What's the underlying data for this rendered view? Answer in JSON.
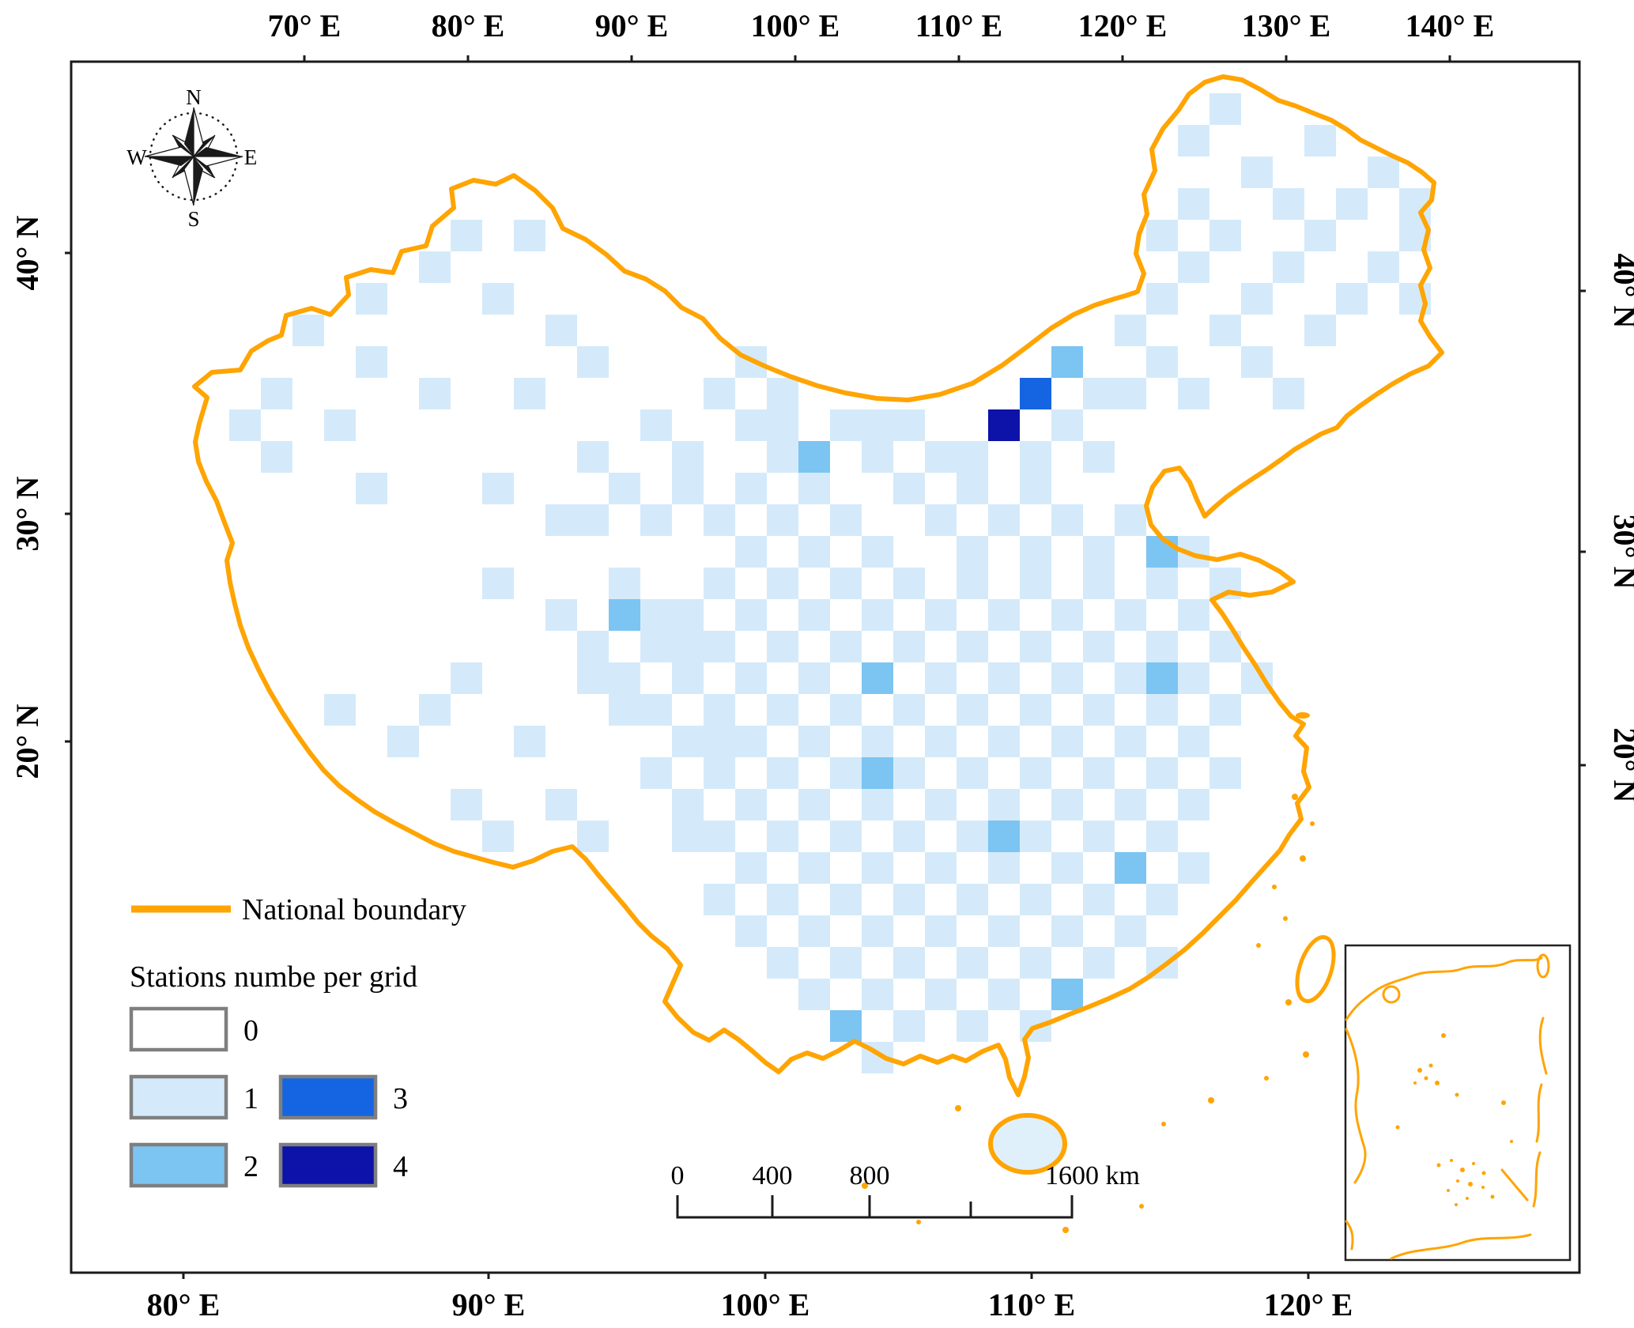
{
  "map": {
    "axes": {
      "top": [
        "70° E",
        "80° E",
        "90° E",
        "100° E",
        "110° E",
        "120° E",
        "130° E",
        "140° E"
      ],
      "bottom": [
        "80° E",
        "90° E",
        "100° E",
        "110° E",
        "120° E"
      ],
      "left": [
        "40° N",
        "30° N",
        "20° N"
      ],
      "right": [
        "40° N",
        "30° N",
        "20° N"
      ]
    },
    "compass": {
      "letters": [
        "N",
        "E",
        "S",
        "W"
      ]
    },
    "legend": {
      "boundary_label": "National boundary",
      "stations_title": "Stations numbe per grid",
      "classes": [
        {
          "label": "0",
          "color": "#ffffff"
        },
        {
          "label": "1",
          "color": "#d4eafa"
        },
        {
          "label": "2",
          "color": "#7cc4f2"
        },
        {
          "label": "3",
          "color": "#1565e2"
        },
        {
          "label": "4",
          "color": "#0d12a8"
        }
      ]
    },
    "scalebar": {
      "labels": [
        "0",
        "400",
        "800",
        "1600 km"
      ]
    },
    "colors": {
      "boundary": "#ffa400",
      "frame": "#1a1a1a",
      "swatch_border": "#7f7f7f"
    },
    "grid_cells": [
      [
        36,
        1,
        1
      ],
      [
        35,
        2,
        1
      ],
      [
        39,
        2,
        1
      ],
      [
        37,
        3,
        1
      ],
      [
        41,
        3,
        1
      ],
      [
        35,
        4,
        1
      ],
      [
        38,
        4,
        1
      ],
      [
        40,
        4,
        1
      ],
      [
        42,
        4,
        1
      ],
      [
        34,
        5,
        1
      ],
      [
        36,
        5,
        1
      ],
      [
        39,
        5,
        1
      ],
      [
        42,
        5,
        1
      ],
      [
        35,
        6,
        1
      ],
      [
        38,
        6,
        1
      ],
      [
        41,
        6,
        1
      ],
      [
        34,
        7,
        1
      ],
      [
        37,
        7,
        1
      ],
      [
        40,
        7,
        1
      ],
      [
        42,
        7,
        1
      ],
      [
        33,
        8,
        1
      ],
      [
        36,
        8,
        1
      ],
      [
        39,
        8,
        1
      ],
      [
        34,
        9,
        1
      ],
      [
        37,
        9,
        1
      ],
      [
        38,
        10,
        1
      ],
      [
        35,
        10,
        1
      ],
      [
        32,
        10,
        1
      ],
      [
        31,
        9,
        2
      ],
      [
        30,
        10,
        3
      ],
      [
        29,
        11,
        4
      ],
      [
        21,
        9,
        1
      ],
      [
        20,
        10,
        1
      ],
      [
        22,
        10,
        1
      ],
      [
        33,
        10,
        1
      ],
      [
        21,
        11,
        1
      ],
      [
        22,
        11,
        1
      ],
      [
        24,
        11,
        1
      ],
      [
        25,
        11,
        1
      ],
      [
        26,
        11,
        1
      ],
      [
        31,
        11,
        1
      ],
      [
        19,
        12,
        1
      ],
      [
        22,
        12,
        1
      ],
      [
        25,
        12,
        1
      ],
      [
        27,
        12,
        1
      ],
      [
        28,
        12,
        1
      ],
      [
        30,
        12,
        1
      ],
      [
        32,
        12,
        1
      ],
      [
        23,
        12,
        2
      ],
      [
        12,
        5,
        1
      ],
      [
        14,
        5,
        1
      ],
      [
        11,
        6,
        1
      ],
      [
        9,
        7,
        1
      ],
      [
        13,
        7,
        1
      ],
      [
        7,
        8,
        1
      ],
      [
        15,
        8,
        1
      ],
      [
        9,
        9,
        1
      ],
      [
        16,
        9,
        1
      ],
      [
        6,
        10,
        1
      ],
      [
        11,
        10,
        1
      ],
      [
        14,
        10,
        1
      ],
      [
        5,
        11,
        1
      ],
      [
        8,
        11,
        1
      ],
      [
        18,
        11,
        1
      ],
      [
        6,
        12,
        1
      ],
      [
        16,
        12,
        1
      ],
      [
        9,
        13,
        1
      ],
      [
        13,
        13,
        1
      ],
      [
        17,
        13,
        1
      ],
      [
        19,
        13,
        1
      ],
      [
        15,
        14,
        1
      ],
      [
        16,
        14,
        1
      ],
      [
        18,
        14,
        1
      ],
      [
        13,
        16,
        1
      ],
      [
        17,
        16,
        1
      ],
      [
        15,
        17,
        1
      ],
      [
        18,
        17,
        1
      ],
      [
        12,
        19,
        1
      ],
      [
        16,
        19,
        1
      ],
      [
        19,
        18,
        1
      ],
      [
        8,
        20,
        1
      ],
      [
        11,
        20,
        1
      ],
      [
        10,
        21,
        1
      ],
      [
        14,
        21,
        1
      ],
      [
        17,
        20,
        1
      ],
      [
        20,
        21,
        1
      ],
      [
        12,
        23,
        1
      ],
      [
        15,
        23,
        1
      ],
      [
        18,
        22,
        1
      ],
      [
        13,
        24,
        1
      ],
      [
        16,
        24,
        1
      ],
      [
        19,
        24,
        1
      ],
      [
        21,
        13,
        1
      ],
      [
        23,
        13,
        1
      ],
      [
        26,
        13,
        1
      ],
      [
        28,
        13,
        1
      ],
      [
        30,
        13,
        1
      ],
      [
        20,
        14,
        1
      ],
      [
        22,
        14,
        1
      ],
      [
        24,
        14,
        1
      ],
      [
        27,
        14,
        1
      ],
      [
        29,
        14,
        1
      ],
      [
        31,
        14,
        1
      ],
      [
        33,
        14,
        1
      ],
      [
        21,
        15,
        1
      ],
      [
        23,
        15,
        1
      ],
      [
        25,
        15,
        1
      ],
      [
        28,
        15,
        1
      ],
      [
        30,
        15,
        1
      ],
      [
        32,
        15,
        1
      ],
      [
        35,
        15,
        1
      ],
      [
        34,
        15,
        2
      ],
      [
        20,
        16,
        1
      ],
      [
        22,
        16,
        1
      ],
      [
        24,
        16,
        1
      ],
      [
        26,
        16,
        1
      ],
      [
        28,
        16,
        1
      ],
      [
        30,
        16,
        1
      ],
      [
        32,
        16,
        1
      ],
      [
        34,
        16,
        1
      ],
      [
        36,
        16,
        1
      ],
      [
        21,
        17,
        1
      ],
      [
        23,
        17,
        1
      ],
      [
        25,
        17,
        1
      ],
      [
        27,
        17,
        1
      ],
      [
        29,
        17,
        1
      ],
      [
        31,
        17,
        1
      ],
      [
        33,
        17,
        1
      ],
      [
        35,
        17,
        1
      ],
      [
        17,
        17,
        2
      ],
      [
        19,
        17,
        1
      ],
      [
        20,
        18,
        1
      ],
      [
        22,
        18,
        1
      ],
      [
        24,
        18,
        1
      ],
      [
        26,
        18,
        1
      ],
      [
        28,
        18,
        1
      ],
      [
        30,
        18,
        1
      ],
      [
        32,
        18,
        1
      ],
      [
        34,
        18,
        1
      ],
      [
        36,
        18,
        1
      ],
      [
        16,
        18,
        1
      ],
      [
        18,
        18,
        1
      ],
      [
        17,
        19,
        1
      ],
      [
        19,
        19,
        1
      ],
      [
        21,
        19,
        1
      ],
      [
        23,
        19,
        1
      ],
      [
        27,
        19,
        1
      ],
      [
        29,
        19,
        1
      ],
      [
        31,
        19,
        1
      ],
      [
        33,
        19,
        1
      ],
      [
        35,
        19,
        1
      ],
      [
        37,
        19,
        1
      ],
      [
        25,
        19,
        2
      ],
      [
        34,
        19,
        2
      ],
      [
        18,
        20,
        1
      ],
      [
        20,
        20,
        1
      ],
      [
        22,
        20,
        1
      ],
      [
        24,
        20,
        1
      ],
      [
        26,
        20,
        1
      ],
      [
        28,
        20,
        1
      ],
      [
        30,
        20,
        1
      ],
      [
        32,
        20,
        1
      ],
      [
        34,
        20,
        1
      ],
      [
        36,
        20,
        1
      ],
      [
        19,
        21,
        1
      ],
      [
        21,
        21,
        1
      ],
      [
        23,
        21,
        1
      ],
      [
        25,
        21,
        1
      ],
      [
        27,
        21,
        1
      ],
      [
        29,
        21,
        1
      ],
      [
        31,
        21,
        1
      ],
      [
        33,
        21,
        1
      ],
      [
        35,
        21,
        1
      ],
      [
        18,
        22,
        1
      ],
      [
        20,
        22,
        1
      ],
      [
        22,
        22,
        1
      ],
      [
        24,
        22,
        1
      ],
      [
        26,
        22,
        1
      ],
      [
        28,
        22,
        1
      ],
      [
        30,
        22,
        1
      ],
      [
        32,
        22,
        1
      ],
      [
        34,
        22,
        1
      ],
      [
        36,
        22,
        1
      ],
      [
        25,
        22,
        2
      ],
      [
        19,
        23,
        1
      ],
      [
        21,
        23,
        1
      ],
      [
        23,
        23,
        1
      ],
      [
        25,
        23,
        1
      ],
      [
        27,
        23,
        1
      ],
      [
        29,
        23,
        1
      ],
      [
        31,
        23,
        1
      ],
      [
        33,
        23,
        1
      ],
      [
        35,
        23,
        1
      ],
      [
        20,
        24,
        1
      ],
      [
        22,
        24,
        1
      ],
      [
        24,
        24,
        1
      ],
      [
        26,
        24,
        1
      ],
      [
        28,
        24,
        1
      ],
      [
        30,
        24,
        1
      ],
      [
        32,
        24,
        1
      ],
      [
        34,
        24,
        1
      ],
      [
        29,
        24,
        2
      ],
      [
        21,
        25,
        1
      ],
      [
        23,
        25,
        1
      ],
      [
        25,
        25,
        1
      ],
      [
        27,
        25,
        1
      ],
      [
        29,
        25,
        1
      ],
      [
        31,
        25,
        1
      ],
      [
        35,
        25,
        1
      ],
      [
        33,
        25,
        2
      ],
      [
        20,
        26,
        1
      ],
      [
        22,
        26,
        1
      ],
      [
        24,
        26,
        1
      ],
      [
        26,
        26,
        1
      ],
      [
        28,
        26,
        1
      ],
      [
        30,
        26,
        1
      ],
      [
        32,
        26,
        1
      ],
      [
        34,
        26,
        1
      ],
      [
        21,
        27,
        1
      ],
      [
        23,
        27,
        1
      ],
      [
        25,
        27,
        1
      ],
      [
        27,
        27,
        1
      ],
      [
        29,
        27,
        1
      ],
      [
        31,
        27,
        1
      ],
      [
        33,
        27,
        1
      ],
      [
        22,
        28,
        1
      ],
      [
        24,
        28,
        1
      ],
      [
        26,
        28,
        1
      ],
      [
        28,
        28,
        1
      ],
      [
        30,
        28,
        1
      ],
      [
        32,
        28,
        1
      ],
      [
        34,
        28,
        1
      ],
      [
        23,
        29,
        1
      ],
      [
        25,
        29,
        1
      ],
      [
        27,
        29,
        1
      ],
      [
        29,
        29,
        1
      ],
      [
        31,
        29,
        2
      ],
      [
        24,
        30,
        2
      ],
      [
        26,
        30,
        1
      ],
      [
        28,
        30,
        1
      ],
      [
        30,
        30,
        1
      ],
      [
        25,
        31,
        1
      ]
    ]
  }
}
